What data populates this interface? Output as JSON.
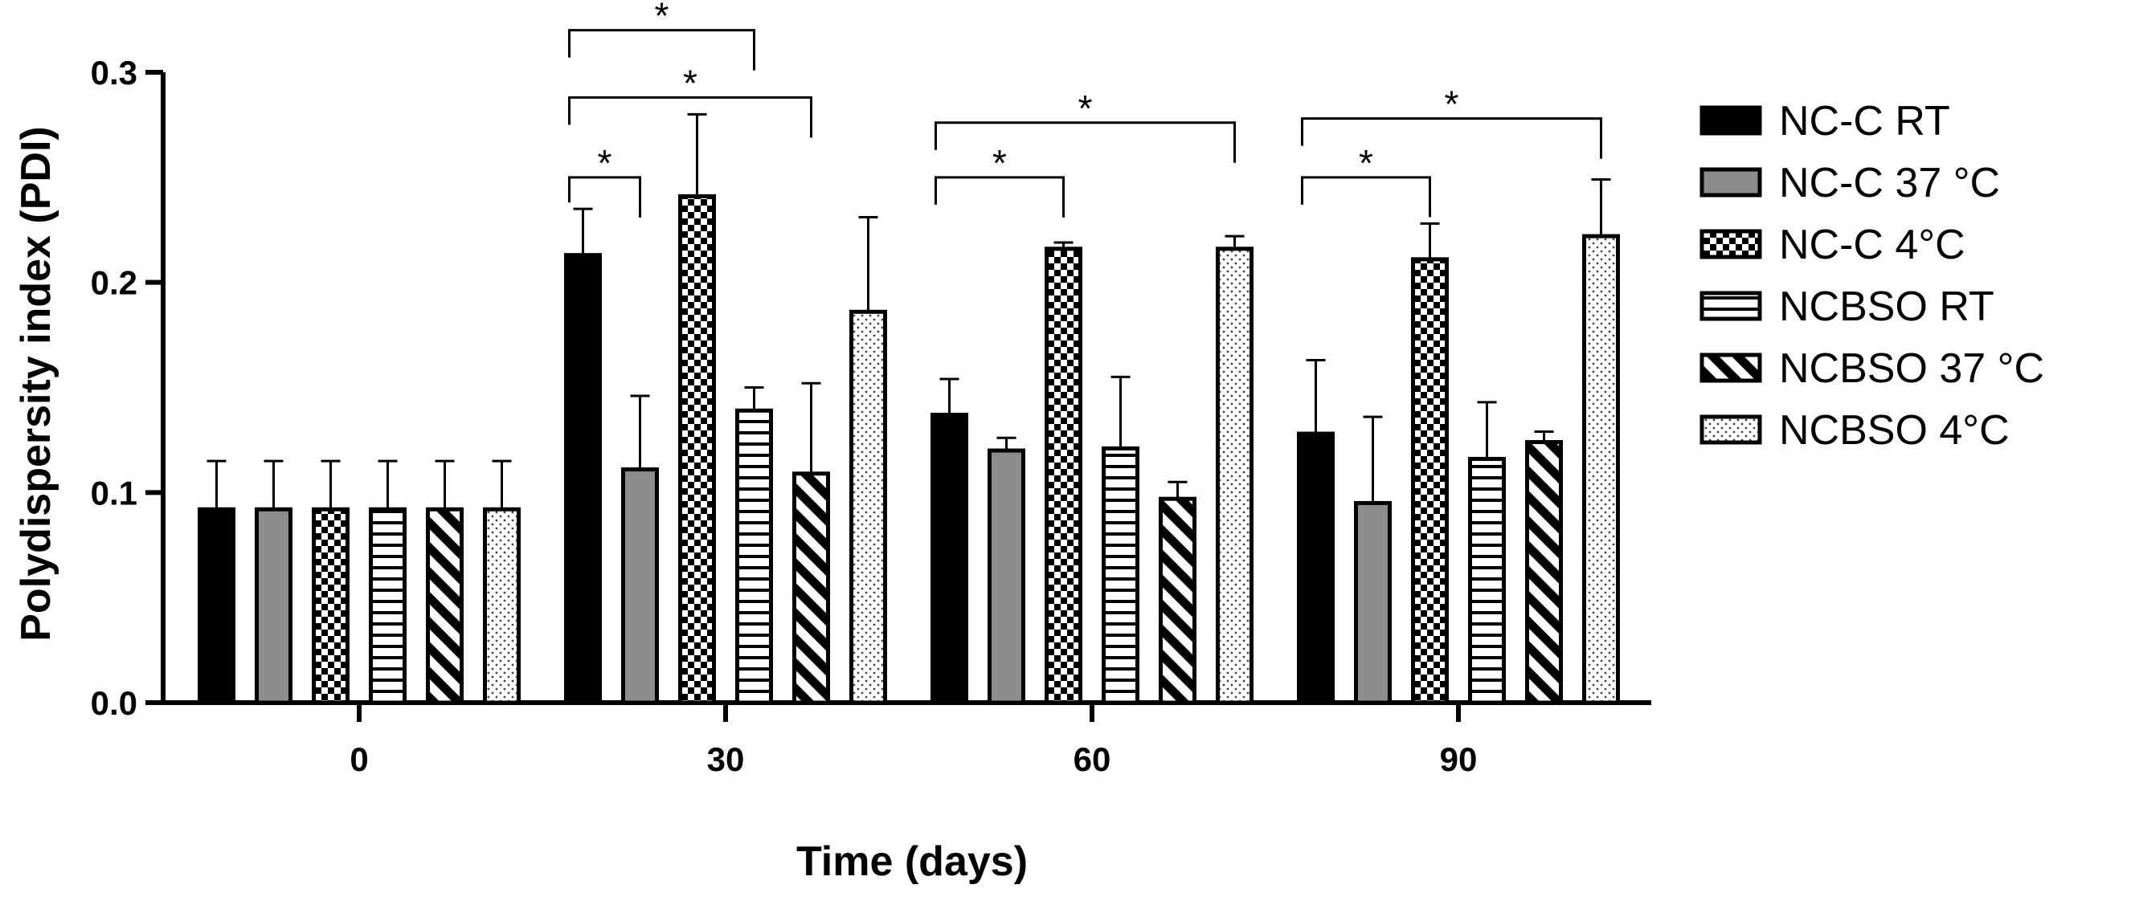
{
  "chart_data": {
    "type": "bar",
    "title": "",
    "xlabel": "Time (days)",
    "ylabel": "Polydispersity index (PDI)",
    "ylim": [
      0.0,
      0.3
    ],
    "yticks": [
      "0.0",
      "0.1",
      "0.2",
      "0.3"
    ],
    "categories": [
      "0",
      "30",
      "60",
      "90"
    ],
    "series": [
      {
        "name": "NC-C RT",
        "pattern": "solid-black",
        "values": [
          0.092,
          0.213,
          0.137,
          0.128
        ],
        "errors": [
          0.023,
          0.022,
          0.017,
          0.035
        ]
      },
      {
        "name": "NC-C 37 °C",
        "pattern": "solid-gray",
        "values": [
          0.092,
          0.111,
          0.12,
          0.095
        ],
        "errors": [
          0.023,
          0.035,
          0.006,
          0.041
        ]
      },
      {
        "name": "NC-C 4°C",
        "pattern": "checker",
        "values": [
          0.092,
          0.241,
          0.216,
          0.211
        ],
        "errors": [
          0.023,
          0.039,
          0.003,
          0.017
        ]
      },
      {
        "name": "NCBSO RT",
        "pattern": "horizontal-lines",
        "values": [
          0.092,
          0.139,
          0.121,
          0.116
        ],
        "errors": [
          0.023,
          0.011,
          0.034,
          0.027
        ]
      },
      {
        "name": "NCBSO 37 °C",
        "pattern": "diagonal-stripes",
        "values": [
          0.092,
          0.109,
          0.097,
          0.124
        ],
        "errors": [
          0.023,
          0.043,
          0.008,
          0.005
        ]
      },
      {
        "name": "NCBSO 4°C",
        "pattern": "dots",
        "values": [
          0.092,
          0.186,
          0.216,
          0.222
        ],
        "errors": [
          0.023,
          0.045,
          0.006,
          0.027
        ]
      }
    ],
    "significance": [
      {
        "category": "30",
        "from_series": 0,
        "to_series": 1,
        "label": "*",
        "level": 0.25
      },
      {
        "category": "30",
        "from_series": 0,
        "to_series": 3,
        "label": "*",
        "level": 0.32
      },
      {
        "category": "30",
        "from_series": 0,
        "to_series": 4,
        "label": "*",
        "level": 0.288
      },
      {
        "category": "60",
        "from_series": 0,
        "to_series": 2,
        "label": "*",
        "level": 0.25
      },
      {
        "category": "60",
        "from_series": 0,
        "to_series": 5,
        "label": "*",
        "level": 0.276
      },
      {
        "category": "90",
        "from_series": 0,
        "to_series": 2,
        "label": "*",
        "level": 0.25
      },
      {
        "category": "90",
        "from_series": 0,
        "to_series": 5,
        "label": "*",
        "level": 0.278
      }
    ],
    "legend_position": "right",
    "grid": false
  }
}
